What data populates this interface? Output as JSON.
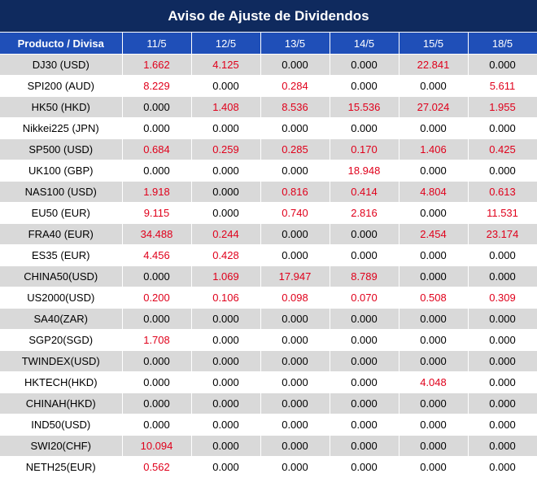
{
  "title": "Aviso de Ajuste de Dividendos",
  "header": {
    "product_label": "Producto / Divisa",
    "dates": [
      "11/5",
      "12/5",
      "13/5",
      "14/5",
      "15/5",
      "18/5"
    ]
  },
  "colors": {
    "title_bg": "#0f2a5e",
    "header_bg": "#1f4fb8",
    "positive_value": "#e0001b",
    "stripe": "#d9d9d9"
  },
  "rows": [
    {
      "product": "DJ30 (USD)",
      "values": [
        "1.662",
        "4.125",
        "0.000",
        "0.000",
        "22.841",
        "0.000"
      ]
    },
    {
      "product": "SPI200 (AUD)",
      "values": [
        "8.229",
        "0.000",
        "0.284",
        "0.000",
        "0.000",
        "5.611"
      ]
    },
    {
      "product": "HK50 (HKD)",
      "values": [
        "0.000",
        "1.408",
        "8.536",
        "15.536",
        "27.024",
        "1.955"
      ]
    },
    {
      "product": "Nikkei225 (JPN)",
      "values": [
        "0.000",
        "0.000",
        "0.000",
        "0.000",
        "0.000",
        "0.000"
      ]
    },
    {
      "product": "SP500 (USD)",
      "values": [
        "0.684",
        "0.259",
        "0.285",
        "0.170",
        "1.406",
        "0.425"
      ]
    },
    {
      "product": "UK100 (GBP)",
      "values": [
        "0.000",
        "0.000",
        "0.000",
        "18.948",
        "0.000",
        "0.000"
      ]
    },
    {
      "product": "NAS100 (USD)",
      "values": [
        "1.918",
        "0.000",
        "0.816",
        "0.414",
        "4.804",
        "0.613"
      ]
    },
    {
      "product": "EU50 (EUR)",
      "values": [
        "9.115",
        "0.000",
        "0.740",
        "2.816",
        "0.000",
        "11.531"
      ]
    },
    {
      "product": "FRA40 (EUR)",
      "values": [
        "34.488",
        "0.244",
        "0.000",
        "0.000",
        "2.454",
        "23.174"
      ]
    },
    {
      "product": "ES35 (EUR)",
      "values": [
        "4.456",
        "0.428",
        "0.000",
        "0.000",
        "0.000",
        "0.000"
      ]
    },
    {
      "product": "CHINA50(USD)",
      "values": [
        "0.000",
        "1.069",
        "17.947",
        "8.789",
        "0.000",
        "0.000"
      ]
    },
    {
      "product": "US2000(USD)",
      "values": [
        "0.200",
        "0.106",
        "0.098",
        "0.070",
        "0.508",
        "0.309"
      ]
    },
    {
      "product": "SA40(ZAR)",
      "values": [
        "0.000",
        "0.000",
        "0.000",
        "0.000",
        "0.000",
        "0.000"
      ]
    },
    {
      "product": "SGP20(SGD)",
      "values": [
        "1.708",
        "0.000",
        "0.000",
        "0.000",
        "0.000",
        "0.000"
      ]
    },
    {
      "product": "TWINDEX(USD)",
      "values": [
        "0.000",
        "0.000",
        "0.000",
        "0.000",
        "0.000",
        "0.000"
      ]
    },
    {
      "product": "HKTECH(HKD)",
      "values": [
        "0.000",
        "0.000",
        "0.000",
        "0.000",
        "4.048",
        "0.000"
      ]
    },
    {
      "product": "CHINAH(HKD)",
      "values": [
        "0.000",
        "0.000",
        "0.000",
        "0.000",
        "0.000",
        "0.000"
      ]
    },
    {
      "product": "IND50(USD)",
      "values": [
        "0.000",
        "0.000",
        "0.000",
        "0.000",
        "0.000",
        "0.000"
      ]
    },
    {
      "product": "SWI20(CHF)",
      "values": [
        "10.094",
        "0.000",
        "0.000",
        "0.000",
        "0.000",
        "0.000"
      ]
    },
    {
      "product": "NETH25(EUR)",
      "values": [
        "0.562",
        "0.000",
        "0.000",
        "0.000",
        "0.000",
        "0.000"
      ]
    }
  ]
}
